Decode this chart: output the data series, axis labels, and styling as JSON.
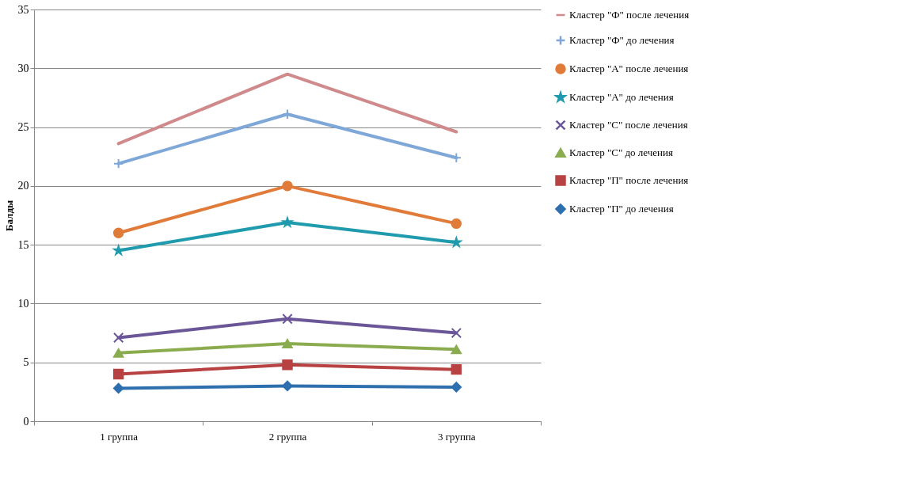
{
  "chart_data": {
    "type": "line",
    "ylabel": "Балды",
    "categories": [
      "1 группа",
      "2 группа",
      "3 группа"
    ],
    "ylim": [
      0,
      35
    ],
    "yticks": [
      0,
      5,
      10,
      15,
      20,
      25,
      30,
      35
    ],
    "grid": "y",
    "legend": "right",
    "series": [
      {
        "name": "Кластер \"Ф\" после лечения",
        "color": "#d08a8c",
        "marker": "none",
        "values": [
          23.6,
          29.5,
          24.6
        ]
      },
      {
        "name": "Кластер \"Ф\" до лечения",
        "color": "#7fa8d9",
        "marker": "plus",
        "values": [
          21.9,
          26.1,
          22.4
        ]
      },
      {
        "name": "Кластер \"А\" после лечения",
        "color": "#e07b39",
        "marker": "circle",
        "values": [
          16.0,
          20.0,
          16.8
        ]
      },
      {
        "name": "Кластер \"А\" до лечения",
        "color": "#1f9bad",
        "marker": "star",
        "values": [
          14.5,
          16.9,
          15.2
        ]
      },
      {
        "name": "Кластер \"С\" после лечения",
        "color": "#6b5698",
        "marker": "x",
        "values": [
          7.1,
          8.7,
          7.5
        ]
      },
      {
        "name": "Кластер \"С\" до лечения",
        "color": "#8aac4f",
        "marker": "triangle",
        "values": [
          5.8,
          6.6,
          6.1
        ]
      },
      {
        "name": "Кластер \"П\" после лечения",
        "color": "#b84141",
        "marker": "square",
        "values": [
          4.0,
          4.8,
          4.4
        ]
      },
      {
        "name": "Кластер \"П\" до лечения",
        "color": "#2e6fae",
        "marker": "diamond",
        "values": [
          2.8,
          3.0,
          2.9
        ]
      }
    ]
  }
}
